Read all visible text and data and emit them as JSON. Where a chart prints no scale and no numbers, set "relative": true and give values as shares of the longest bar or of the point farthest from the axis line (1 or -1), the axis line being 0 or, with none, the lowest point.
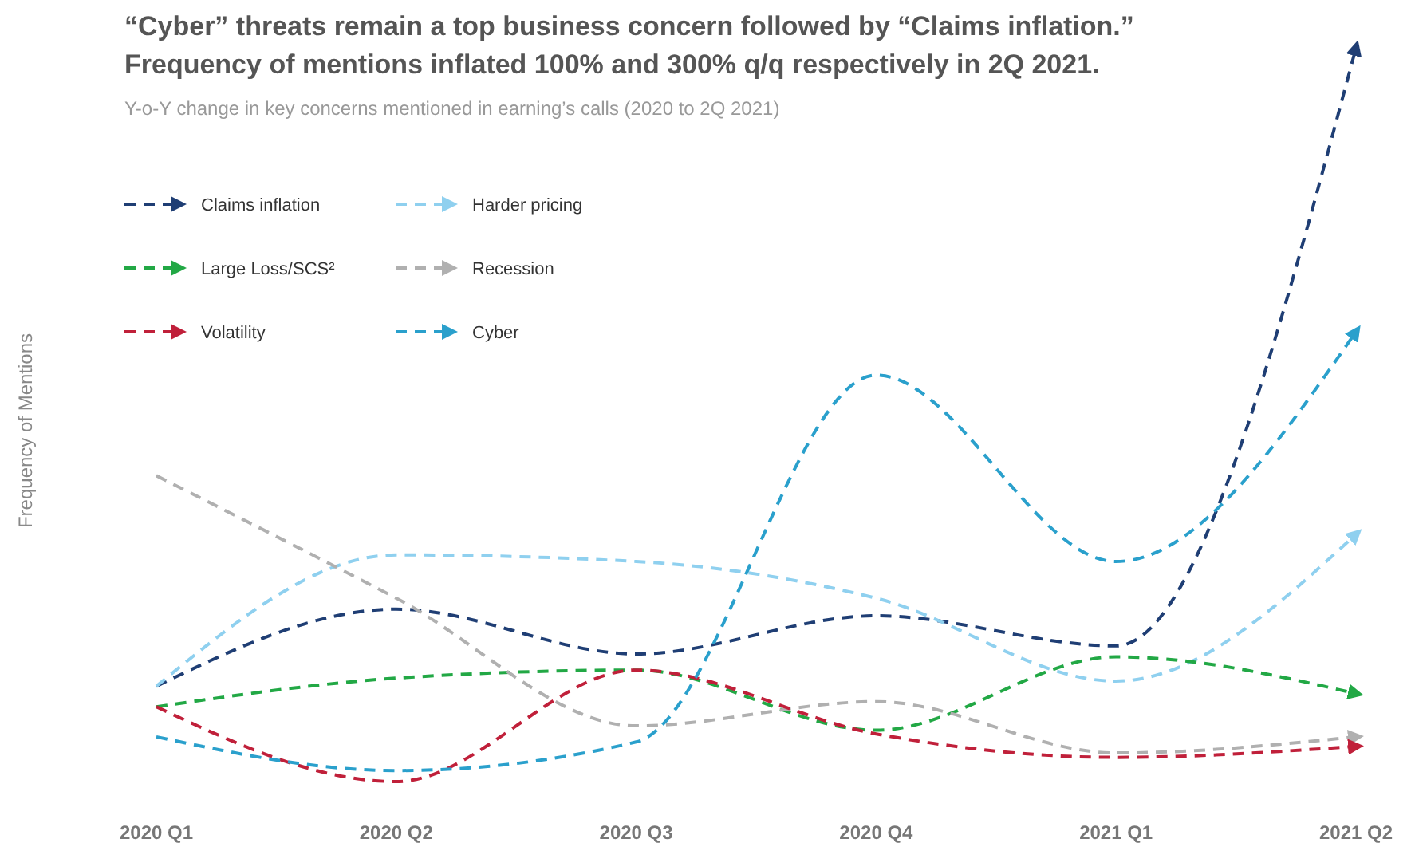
{
  "chart_data": {
    "type": "line",
    "title": "“Cyber” threats remain a top business concern followed by “Claims inflation.”\nFrequency of mentions inflated 100% and 300% q/q respectively in 2Q 2021.",
    "subtitle": "Y-o-Y change in key concerns mentioned in earning’s calls (2020 to 2Q 2021)",
    "ylabel": "Frequency of Mentions",
    "relative": true,
    "line_style": "dashed",
    "legend": "top left",
    "grid": false,
    "categories": [
      "2020 Q1",
      "2020 Q2",
      "2020 Q3",
      "2020 Q4",
      "2021 Q1",
      "2021 Q2"
    ],
    "series": [
      {
        "name": "Claims inflation",
        "color": "#1f3e74",
        "values": [
          0.13,
          0.235,
          0.174,
          0.226,
          0.185,
          1
        ]
      },
      {
        "name": "Harder pricing",
        "color": "#8fd0ef",
        "values": [
          0.13,
          0.309,
          0.3,
          0.25,
          0.137,
          0.337
        ]
      },
      {
        "name": "Large Loss/SCS²",
        "color": "#22a845",
        "values": [
          0.102,
          0.141,
          0.152,
          0.07,
          0.17,
          0.12
        ]
      },
      {
        "name": "Recession",
        "color": "#b0b0b0",
        "values": [
          0.417,
          0.25,
          0.076,
          0.109,
          0.039,
          0.061
        ]
      },
      {
        "name": "Volatility",
        "color": "#c0203a",
        "values": [
          0.102,
          0,
          0.152,
          0.065,
          0.033,
          0.048
        ]
      },
      {
        "name": "Cyber",
        "color": "#2aa0cc",
        "values": [
          0.061,
          0.015,
          0.054,
          0.554,
          0.3,
          0.613
        ]
      }
    ]
  }
}
